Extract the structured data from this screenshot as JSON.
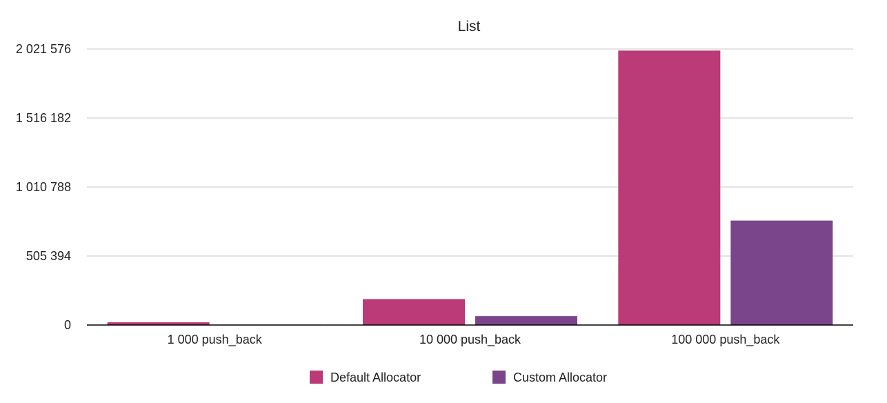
{
  "chart_data": {
    "type": "bar",
    "title": "List",
    "xlabel": "",
    "ylabel": "",
    "categories": [
      "1 000 push_back",
      "10 000 push_back",
      "100 000 push_back"
    ],
    "series": [
      {
        "name": "Default Allocator",
        "color": "#bb3a78",
        "values": [
          20000,
          190000,
          2010000
        ]
      },
      {
        "name": "Custom Allocator",
        "color": "#7b458c",
        "values": [
          3000,
          65000,
          765000
        ]
      }
    ],
    "yticks": [
      0,
      505394,
      1010788,
      1516182,
      2021576
    ],
    "ytick_labels": [
      "0",
      "505 394",
      "1 010 788",
      "1 516 182",
      "2 021 576"
    ],
    "ylim": [
      0,
      2021576
    ],
    "grid": true,
    "legend_position": "bottom"
  }
}
